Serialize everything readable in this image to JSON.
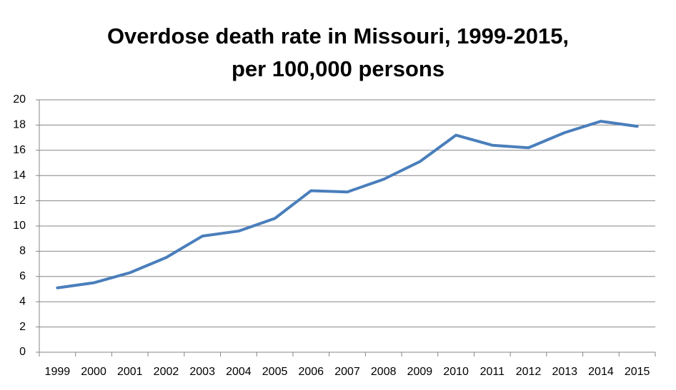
{
  "chart_data": {
    "type": "line",
    "title": "Overdose death rate in Missouri, 1999-2015, per 100,000 persons",
    "categories": [
      "1999",
      "2000",
      "2001",
      "2002",
      "2003",
      "2004",
      "2005",
      "2006",
      "2007",
      "2008",
      "2009",
      "2010",
      "2011",
      "2012",
      "2013",
      "2014",
      "2015"
    ],
    "series": [
      {
        "name": "Overdose death rate",
        "color": "#4a7ebb",
        "values": [
          5.1,
          5.5,
          6.3,
          7.5,
          9.2,
          9.6,
          10.6,
          12.8,
          12.7,
          13.7,
          15.1,
          17.2,
          16.4,
          16.2,
          17.4,
          18.3,
          17.9
        ]
      }
    ],
    "ylim": [
      0,
      20
    ],
    "yticks": [
      0,
      2,
      4,
      6,
      8,
      10,
      12,
      14,
      16,
      18,
      20
    ],
    "grid": true,
    "legend": false
  }
}
